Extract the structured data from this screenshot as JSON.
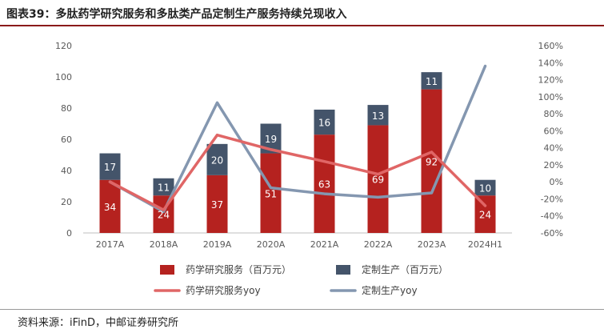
{
  "header": {
    "title": "图表39：多肽药学研究服务和多肽类产品定制生产服务持续兑现收入"
  },
  "footer": {
    "source": "资料来源：iFinD，中邮证券研究所"
  },
  "colors": {
    "bar_pharma": "#b5221f",
    "bar_custom": "#44546a",
    "line_pharma_yoy": "#e06666",
    "line_custom_yoy": "#8497b0",
    "title_rule": "#8b1a1a"
  },
  "chart_data": {
    "type": "bar",
    "stacked": true,
    "categories": [
      "2017A",
      "2018A",
      "2019A",
      "2020A",
      "2021A",
      "2022A",
      "2023A",
      "2024H1"
    ],
    "series": [
      {
        "name": "药学研究服务（百万元）",
        "axis": "left",
        "type": "bar",
        "values": [
          34,
          24,
          37,
          51,
          63,
          69,
          92,
          24
        ]
      },
      {
        "name": "定制生产（百万元）",
        "axis": "left",
        "type": "bar",
        "values": [
          17,
          11,
          20,
          19,
          16,
          13,
          11,
          10
        ]
      },
      {
        "name": "药学研究服务yoy",
        "axis": "right",
        "type": "line",
        "values": [
          0,
          -33,
          55,
          38,
          24,
          9,
          35,
          -28
        ]
      },
      {
        "name": "定制生产yoy",
        "axis": "right",
        "type": "line",
        "values": [
          0,
          -35,
          93,
          -7,
          -14,
          -18,
          -13,
          136
        ]
      }
    ],
    "y_left": {
      "ylim": [
        0,
        120
      ],
      "ticks": [
        "0",
        "20",
        "40",
        "60",
        "80",
        "100",
        "120"
      ]
    },
    "y_right": {
      "ylim": [
        -60,
        160
      ],
      "ticks": [
        "-60%",
        "-40%",
        "-20%",
        "0%",
        "20%",
        "40%",
        "60%",
        "80%",
        "100%",
        "120%",
        "140%",
        "160%"
      ]
    },
    "grid": false,
    "legend": "bottom"
  }
}
